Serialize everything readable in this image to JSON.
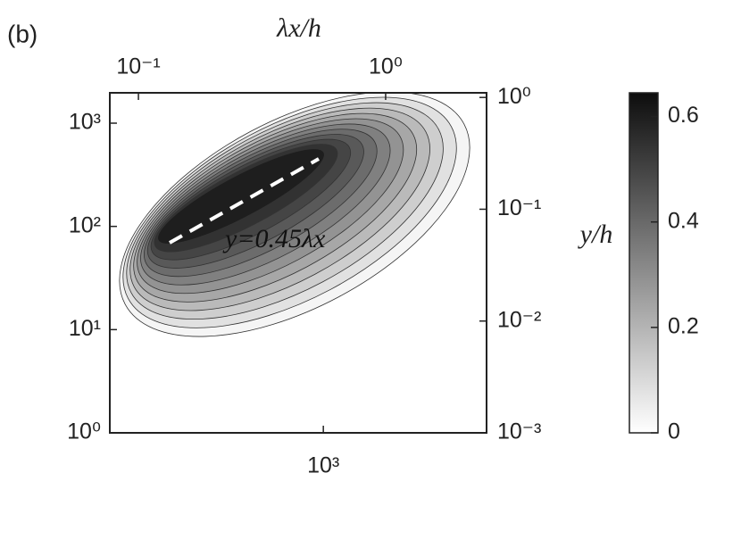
{
  "chart_data": {
    "type": "contour",
    "panel_label": "(b)",
    "annotation": "y=0.45λx",
    "log_scale": true,
    "xlim": [
      137,
      4570
    ],
    "xticks": [
      {
        "value": 1000,
        "label": "10³"
      }
    ],
    "x2label": "λx/h",
    "x2lim": [
      0.0766,
      2.56
    ],
    "x2ticks": [
      {
        "value": 0.1,
        "label": "10⁻¹"
      },
      {
        "value": 1,
        "label": "10⁰"
      }
    ],
    "ylim": [
      1,
      1968
    ],
    "yticks": [
      {
        "value": 1,
        "label": "10⁰"
      },
      {
        "value": 10,
        "label": "10¹"
      },
      {
        "value": 100,
        "label": "10²"
      },
      {
        "value": 1000,
        "label": "10³"
      }
    ],
    "y2lim": [
      0.001,
      1.1
    ],
    "y2ticks": [
      {
        "value": 0.001,
        "label": "10⁻³"
      },
      {
        "value": 0.01,
        "label": "10⁻²"
      },
      {
        "value": 0.1,
        "label": "10⁻¹"
      },
      {
        "value": 1,
        "label": "10⁰"
      }
    ],
    "colorbar": {
      "label": "y/h",
      "lim": [
        0,
        0.645
      ],
      "ticks": [
        0,
        0.2,
        0.4,
        0.6
      ]
    }
  }
}
